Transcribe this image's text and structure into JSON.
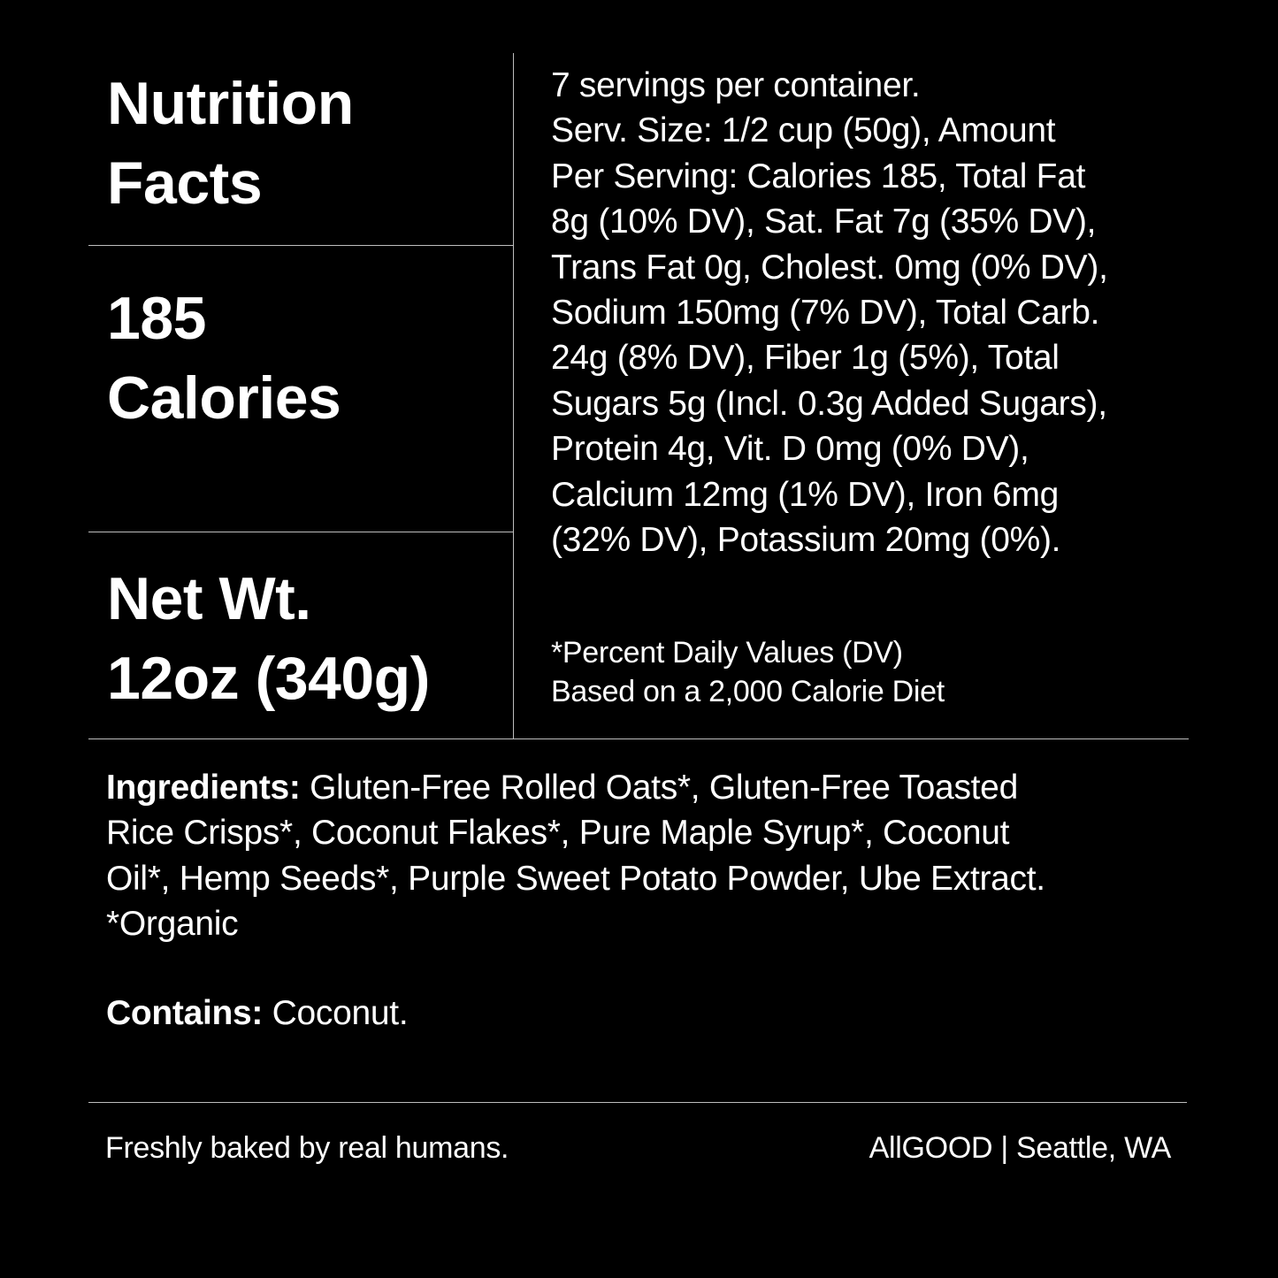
{
  "left": {
    "title_lines": [
      "Nutrition",
      "Facts"
    ],
    "calories_lines": [
      "185",
      "Calories"
    ],
    "net_wt_lines": [
      "Net Wt.",
      "12oz (340g)"
    ]
  },
  "nutrition_lines": [
    "7 servings per container.",
    "Serv. Size: 1/2 cup (50g), Amount",
    "Per Serving: Calories 185, Total Fat",
    "8g (10% DV), Sat. Fat 7g (35% DV),",
    "Trans Fat 0g, Cholest. 0mg (0% DV),",
    "Sodium 150mg (7% DV), Total Carb.",
    "24g (8% DV), Fiber 1g (5%), Total",
    "Sugars 5g (Incl. 0.3g Added Sugars),",
    "Protein 4g, Vit. D 0mg (0% DV),",
    "Calcium 12mg (1% DV), Iron 6mg",
    "(32% DV), Potassium 20mg (0%)."
  ],
  "footnote_lines": [
    "*Percent Daily Values (DV)",
    "Based on a 2,000 Calorie Diet"
  ],
  "ingredients": {
    "label": "Ingredients:",
    "lines": [
      " Gluten-Free Rolled Oats*, Gluten-Free Toasted",
      "Rice Crisps*, Coconut Flakes*, Pure Maple Syrup*, Coconut",
      "Oil*, Hemp Seeds*, Purple Sweet Potato Powder, Ube Extract.",
      "*Organic"
    ]
  },
  "contains": {
    "label": "Contains:",
    "text": " Coconut."
  },
  "footer": {
    "tagline": "Freshly baked by real humans.",
    "brand": "AllGOOD | Seattle, WA"
  },
  "colors": {
    "background": "#000000",
    "text": "#ffffff",
    "divider": "#bdbdbd"
  }
}
